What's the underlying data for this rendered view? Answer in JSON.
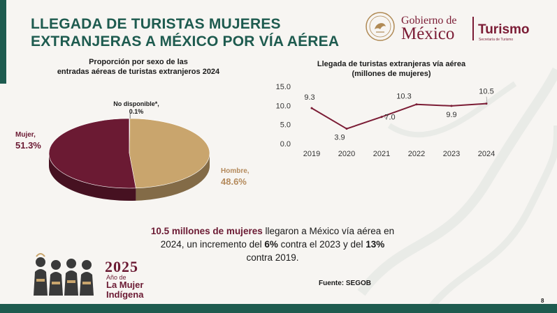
{
  "slide": {
    "title_line1": "LLEGADA DE TURISTAS MUJERES",
    "title_line2": "EXTRANJERAS A MÉXICO POR VÍA AÉREA",
    "page_number": "8",
    "colors": {
      "green": "#1e5b4f",
      "maroon": "#6b1a33",
      "gold": "#c9a56d"
    }
  },
  "logos": {
    "gobierno_line1": "Gobierno de",
    "gobierno_line2": "México",
    "turismo": "Turismo",
    "turismo_sub": "Secretaría de Turismo",
    "emblem": "lettering of an emblem at the top right",
    "mujer_indigena_year": "2025",
    "mujer_indigena_line1": "Año de",
    "mujer_indigena_line2": "La Mujer",
    "mujer_indigena_line3": "Indígena"
  },
  "summary": {
    "highlight": "10.5 millones de mujeres",
    "part1": " llegaron a México vía aérea en 2024, un incremento del ",
    "pct1": "6%",
    "part2": " contra el 2023 y del ",
    "pct2": "13%",
    "part3": " contra 2019."
  },
  "source": "Fuente: SEGOB",
  "chart_data": [
    {
      "type": "pie",
      "title_line1": "Proporción por sexo de las",
      "title_line2": "entradas aéreas de turistas extranjeros 2024",
      "slices": [
        {
          "name": "Mujer,",
          "value": 51.3,
          "label": "51.3%",
          "color": "#6b1a33"
        },
        {
          "name": "Hombre,",
          "value": 48.6,
          "label": "48.6%",
          "color": "#c9a56d"
        },
        {
          "name": "No disponible*,",
          "value": 0.1,
          "label": "0.1%",
          "color": "#7a7a7a"
        }
      ]
    },
    {
      "type": "line",
      "title_line1": "Llegada de turistas extranjeras vía aérea",
      "title_line2": "(millones de mujeres)",
      "x": [
        "2019",
        "2020",
        "2021",
        "2022",
        "2023",
        "2024"
      ],
      "series": [
        {
          "values": [
            9.3,
            3.9,
            7.0,
            10.3,
            9.9,
            10.5
          ],
          "color": "#7b1c35"
        }
      ],
      "data_labels": [
        "9.3",
        "3.9",
        "7.0",
        "10.3",
        "9.9",
        "10.5"
      ],
      "yticks": [
        "0.0",
        "5.0",
        "10.0",
        "15.0"
      ],
      "ylim": [
        0,
        15
      ],
      "grid": false
    }
  ]
}
